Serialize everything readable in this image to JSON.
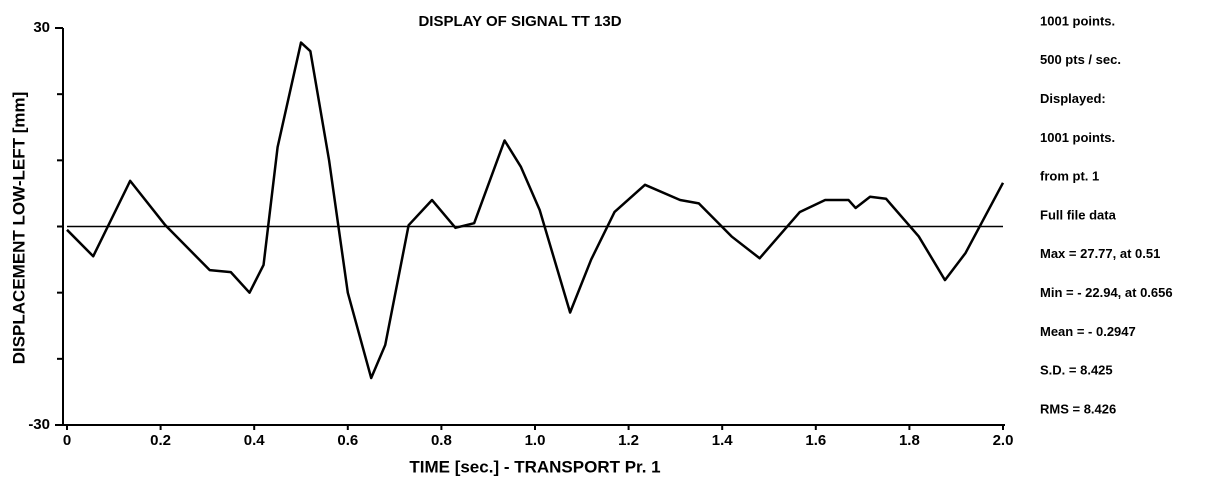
{
  "chart_data": {
    "type": "line",
    "title": "DISPLAY OF SIGNAL TT 13D",
    "x_label": "TIME [sec.]  -  TRANSPORT Pr. 1",
    "y_label": "DISPLACEMENT LOW-LEFT [mm]",
    "xlim": [
      0,
      2.0
    ],
    "xticks": [
      0,
      0.2,
      0.4,
      0.6,
      0.8,
      {
        "value": 1.0,
        "label": "1.0"
      },
      1.2,
      1.4,
      1.6,
      1.8,
      {
        "value": 2.0,
        "label": "2.0"
      }
    ],
    "ylim": [
      -30,
      30
    ],
    "yticks": [
      -30,
      30
    ],
    "y_minor_ticks": [
      -20,
      -10,
      0,
      10,
      20
    ],
    "zero_line": true,
    "x": [
      0,
      0.056,
      0.135,
      0.21,
      0.305,
      0.35,
      0.39,
      0.42,
      0.45,
      0.5,
      0.52,
      0.56,
      0.6,
      0.65,
      0.68,
      0.73,
      0.78,
      0.83,
      0.87,
      0.935,
      0.97,
      1.01,
      1.075,
      1.12,
      1.17,
      1.235,
      1.31,
      1.35,
      1.42,
      1.48,
      1.566,
      1.62,
      1.67,
      1.685,
      1.716,
      1.75,
      1.82,
      1.876,
      1.92,
      2.0
    ],
    "series": [
      {
        "name": "TT 13D",
        "color": "#000000",
        "values": [
          -0.5,
          -4.5,
          6.9,
          0.2,
          -6.6,
          -6.9,
          -10,
          -5.8,
          12,
          27.8,
          26.5,
          10,
          -10,
          -22.9,
          -17.9,
          0.2,
          4.0,
          -0.2,
          0.5,
          13,
          9,
          2.5,
          -13,
          -5,
          2.2,
          6.3,
          4,
          3.5,
          -1.5,
          -4.8,
          2.2,
          4,
          4,
          2.8,
          4.5,
          4.2,
          -1.5,
          -8.1,
          -4,
          6.6
        ]
      }
    ],
    "annotations": [
      "1001 points.",
      "500 pts / sec.",
      "Displayed:",
      "1001 points.",
      "from pt. 1",
      "Full file data",
      "Max = 27.77, at 0.51",
      "Min = -  22.94, at 0.656",
      "Mean = - 0.2947",
      "S.D. = 8.425",
      "RMS = 8.426"
    ]
  }
}
